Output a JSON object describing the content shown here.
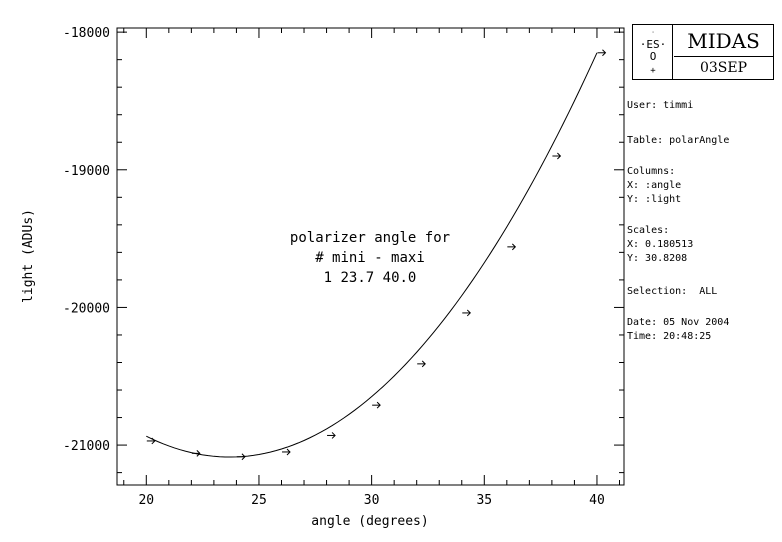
{
  "chart_data": {
    "type": "scatter",
    "xlabel": "angle (degrees)",
    "ylabel": "light (ADUs)",
    "xlim": [
      18.7,
      41.2
    ],
    "ylim": [
      -21290,
      -17970
    ],
    "x_ticks": [
      20,
      25,
      30,
      35,
      40
    ],
    "y_ticks": [
      -18000,
      -19000,
      -20000,
      -21000
    ],
    "x_minor_step": 1,
    "y_minor_step": 200,
    "annotation": [
      "polarizer angle for",
      "# mini - maxi",
      "1 23.7 40.0"
    ],
    "points": [
      {
        "x": 20.2,
        "y": -20970
      },
      {
        "x": 22.2,
        "y": -21060
      },
      {
        "x": 24.2,
        "y": -21085
      },
      {
        "x": 26.2,
        "y": -21050
      },
      {
        "x": 28.2,
        "y": -20930
      },
      {
        "x": 30.2,
        "y": -20710
      },
      {
        "x": 32.2,
        "y": -20410
      },
      {
        "x": 34.2,
        "y": -20040
      },
      {
        "x": 36.2,
        "y": -19560
      },
      {
        "x": 38.2,
        "y": -18900
      },
      {
        "x": 40.2,
        "y": -18150
      }
    ],
    "fit": {
      "type": "parabola",
      "x_min_point": 23.7,
      "y_at_min": -21087,
      "x_end": 40.0,
      "y_at_end": -18150,
      "x_start": 20.0
    }
  },
  "logo": {
    "glyph": ". ES .\nO\n+",
    "title": "MIDAS",
    "version": "03SEP"
  },
  "info": {
    "user": "User: timmi",
    "table": "Table: polarAngle",
    "columns_heading": "Columns:",
    "col_x": "X: :angle",
    "col_y": "Y: :light",
    "scales_heading": "Scales:",
    "scale_x": "X: 0.180513",
    "scale_y": "Y: 30.8208",
    "selection": "Selection:  ALL",
    "date": "Date: 05 Nov 2004",
    "time": "Time: 20:48:25"
  }
}
